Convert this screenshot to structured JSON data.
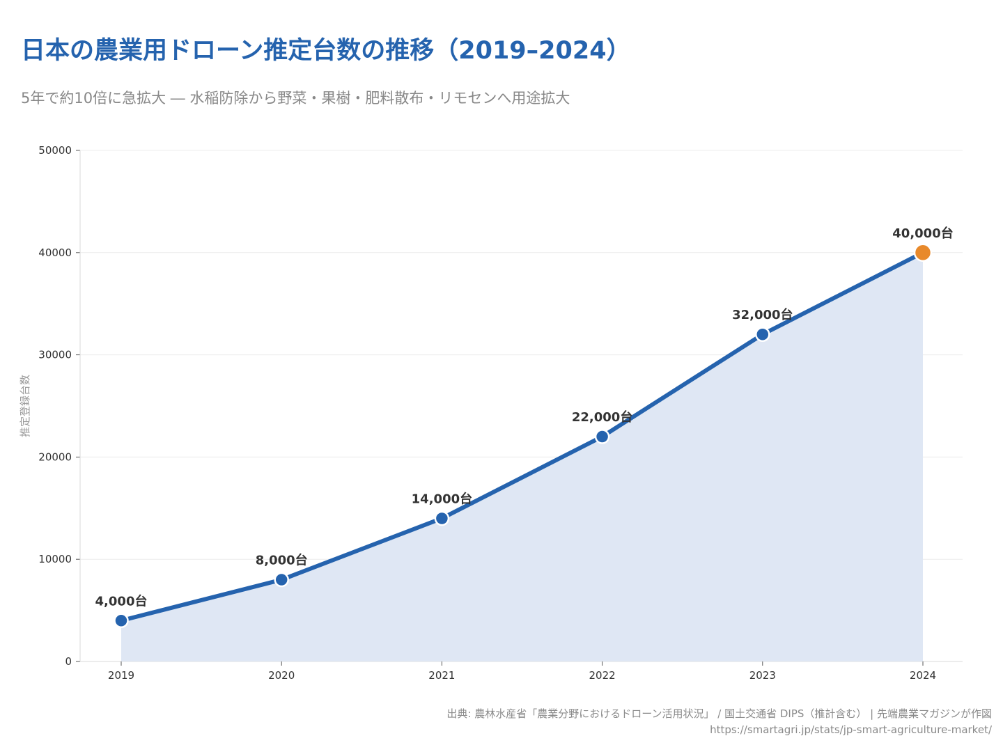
{
  "header": {
    "title": "日本の農業用ドローン推定台数の推移（2019–2024）",
    "subtitle": "5年で約10倍に急拡大 ― 水稲防除から野菜・果樹・肥料散布・リモセンへ用途拡大"
  },
  "footer": {
    "source": "出典: 農林水産省「農業分野におけるドローン活用状況」 / 国土交通省 DIPS（推計含む） | 先端農業マガジンが作図",
    "url": "https://smartagri.jp/stats/jp-smart-agriculture-market/"
  },
  "colors": {
    "line": "#2563ae",
    "highlight": "#e8892b",
    "area": "#dfe7f4",
    "grid": "#ececec",
    "title": "#2563ae"
  },
  "chart_data": {
    "type": "line",
    "title": "日本の農業用ドローン推定台数の推移（2019–2024）",
    "xlabel": "",
    "ylabel": "推定登録台数",
    "categories": [
      "2019",
      "2020",
      "2021",
      "2022",
      "2023",
      "2024"
    ],
    "values": [
      4000,
      8000,
      14000,
      22000,
      32000,
      40000
    ],
    "data_labels": [
      "4,000台",
      "8,000台",
      "14,000台",
      "22,000台",
      "32,000台",
      "40,000台"
    ],
    "yticks": [
      0,
      10000,
      20000,
      30000,
      40000,
      50000
    ],
    "ytick_labels": [
      "0",
      "10000",
      "20000",
      "30000",
      "40000",
      "50000"
    ],
    "ylim": [
      0,
      50000
    ],
    "grid": true,
    "area_fill": true,
    "highlight_index": 5
  }
}
